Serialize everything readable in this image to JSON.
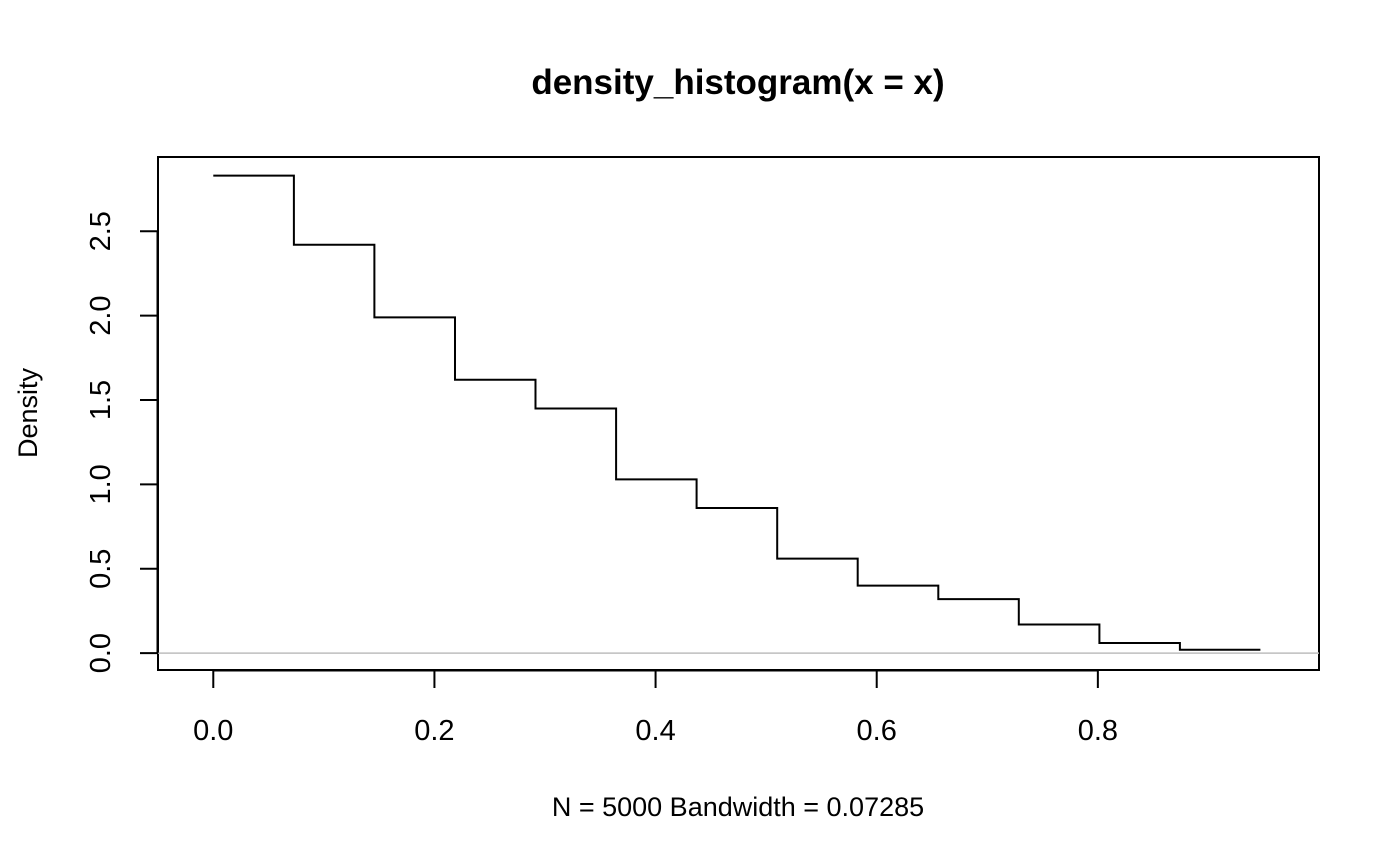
{
  "chart_data": {
    "type": "line",
    "step": true,
    "title": "density_histogram(x = x)",
    "xlabel": "N = 5000   Bandwidth = 0.07285",
    "ylabel": "Density",
    "xlim": [
      -0.05,
      1.0
    ],
    "ylim": [
      -0.1,
      2.94
    ],
    "x_ticks": [
      "0.0",
      "0.2",
      "0.4",
      "0.6",
      "0.8"
    ],
    "y_ticks": [
      "0.0",
      "0.5",
      "1.0",
      "1.5",
      "2.0",
      "2.5"
    ],
    "baseline": {
      "y": 0,
      "color": "#bebebe"
    },
    "line_color": "#000000",
    "x": [
      0.0,
      0.0729,
      0.1457,
      0.2186,
      0.2914,
      0.3643,
      0.4371,
      0.51,
      0.5828,
      0.6557,
      0.7285,
      0.8014,
      0.8742,
      0.947
    ],
    "values": [
      2.83,
      2.42,
      1.99,
      1.62,
      1.45,
      1.03,
      0.86,
      0.56,
      0.4,
      0.32,
      0.17,
      0.06,
      0.02,
      0.02
    ]
  }
}
